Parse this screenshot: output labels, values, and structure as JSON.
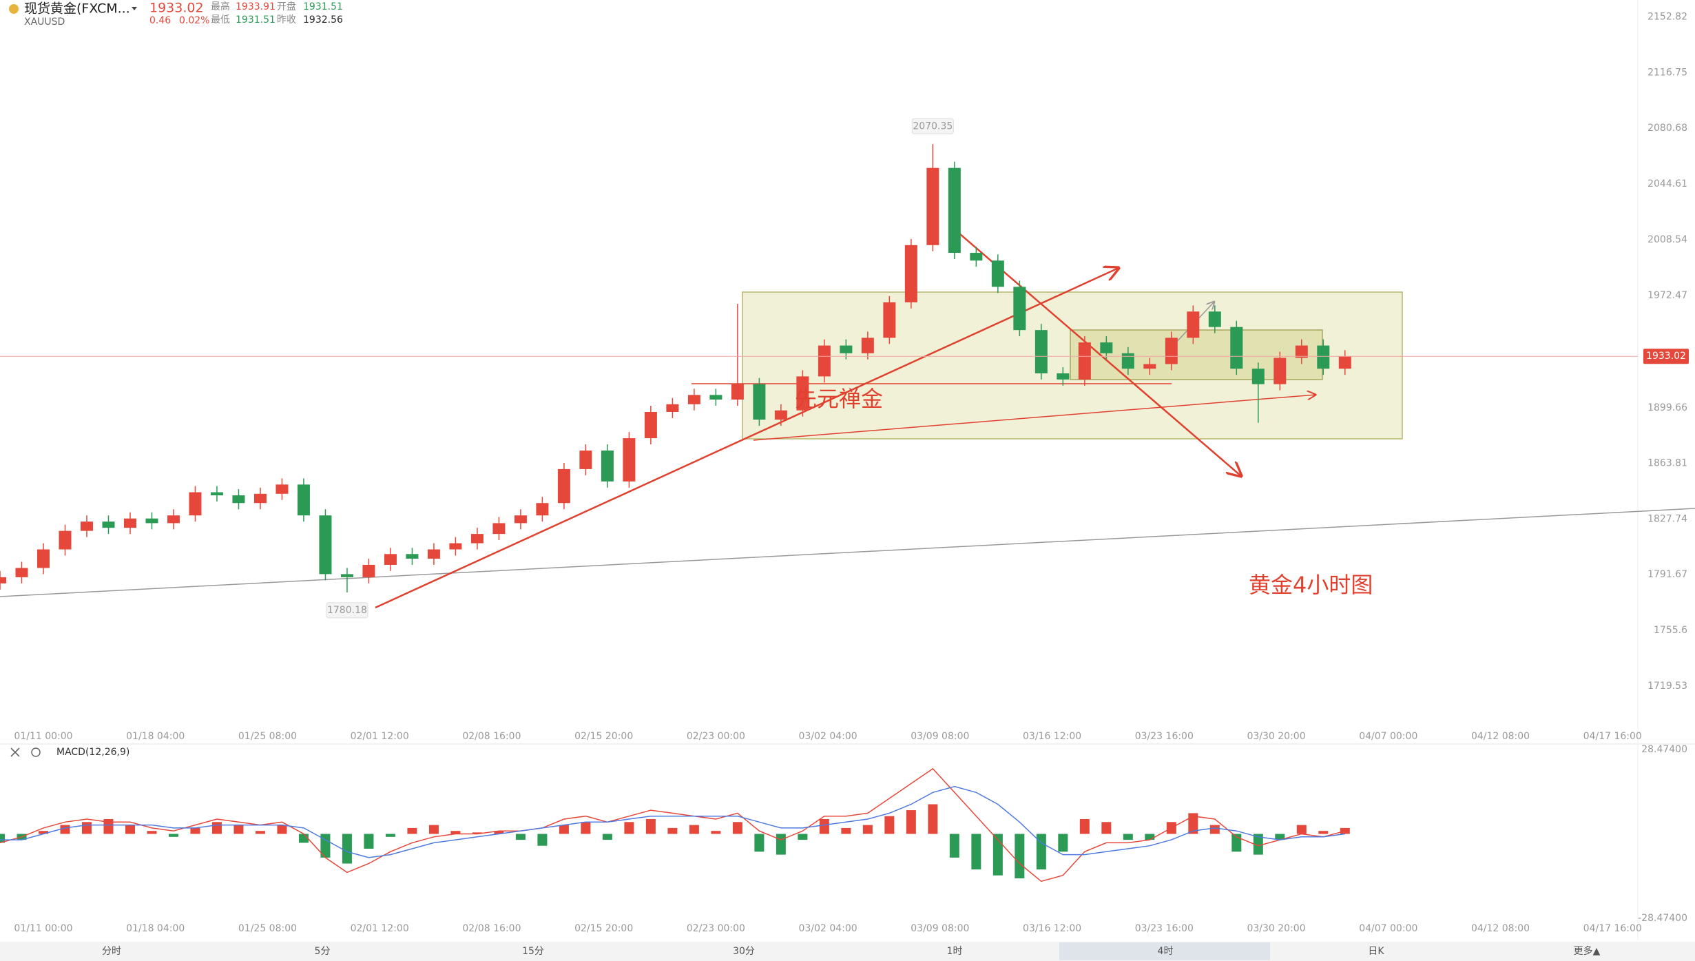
{
  "header": {
    "name": "现货黄金(FXCM...",
    "symbol": "XAUUSD",
    "change": 0.46,
    "change_pct": "0.02%",
    "stats": [
      {
        "label": "最高",
        "value": 1933.91
      },
      {
        "label": "开盘",
        "value": 1931.51
      },
      {
        "label": "最低",
        "value": 1931.51
      },
      {
        "label": "昨收",
        "value": 1932.56
      }
    ]
  },
  "chart_data": {
    "type": "candlestick",
    "current_price": 1933.02,
    "up_color": "#e5473a",
    "down_color": "#2a9a55",
    "annotations": [
      "先元禅金",
      "黄金4小时图"
    ],
    "x": [
      0,
      6,
      12,
      18,
      24,
      30,
      36,
      42,
      48,
      54,
      60,
      66,
      72,
      78,
      84,
      90,
      96,
      102,
      108,
      114,
      120,
      126,
      132,
      138,
      144,
      150,
      156,
      162,
      168,
      174,
      180,
      186,
      192,
      198,
      204,
      210,
      216,
      222,
      228,
      234,
      240,
      246,
      252,
      258,
      264,
      270,
      276,
      282,
      288,
      294,
      300,
      306,
      312,
      318,
      324,
      330,
      336,
      342,
      348,
      354,
      360,
      366,
      372
    ],
    "open": [
      1786,
      1790,
      1796,
      1808,
      1820,
      1826,
      1822,
      1828,
      1825,
      1830,
      1845,
      1843,
      1838,
      1844,
      1850,
      1830,
      1792,
      1790,
      1798,
      1805,
      1802,
      1808,
      1812,
      1818,
      1825,
      1830,
      1838,
      1860,
      1872,
      1852,
      1880,
      1897,
      1902,
      1908,
      1905,
      1915,
      1892,
      1898,
      1920,
      1940,
      1935,
      1945,
      1968,
      2005,
      2055,
      2000,
      1995,
      1978,
      1950,
      1922,
      1918,
      1942,
      1935,
      1925,
      1928,
      1945,
      1962,
      1952,
      1925,
      1915,
      1932,
      1940,
      1925
    ],
    "high": [
      1794,
      1800,
      1812,
      1824,
      1830,
      1830,
      1832,
      1832,
      1834,
      1849,
      1849,
      1847,
      1848,
      1854,
      1854,
      1834,
      1796,
      1802,
      1809,
      1809,
      1812,
      1816,
      1822,
      1829,
      1834,
      1842,
      1864,
      1876,
      1876,
      1884,
      1901,
      1906,
      1912,
      1912,
      1967,
      1919,
      1902,
      1924,
      1944,
      1944,
      1949,
      1972,
      2009,
      2070.35,
      2059,
      2004,
      1999,
      1982,
      1954,
      1926,
      1946,
      1946,
      1939,
      1932,
      1949,
      1966,
      1966,
      1956,
      1929,
      1936,
      1944,
      1944,
      1937
    ],
    "low": [
      1782,
      1786,
      1792,
      1804,
      1816,
      1818,
      1818,
      1821,
      1821,
      1826,
      1839,
      1834,
      1834,
      1840,
      1826,
      1788,
      1780.18,
      1786,
      1794,
      1798,
      1798,
      1804,
      1808,
      1814,
      1821,
      1826,
      1834,
      1856,
      1848,
      1848,
      1876,
      1893,
      1898,
      1901,
      1901,
      1888,
      1888,
      1894,
      1916,
      1931,
      1931,
      1941,
      1964,
      2001,
      1996,
      1991,
      1974,
      1946,
      1918,
      1914,
      1914,
      1931,
      1921,
      1921,
      1924,
      1941,
      1948,
      1921,
      1890,
      1911,
      1928,
      1921,
      1921
    ],
    "close": [
      1790,
      1796,
      1808,
      1820,
      1826,
      1822,
      1828,
      1825,
      1830,
      1845,
      1843,
      1838,
      1844,
      1850,
      1830,
      1792,
      1790,
      1798,
      1805,
      1802,
      1808,
      1812,
      1818,
      1825,
      1830,
      1838,
      1860,
      1872,
      1852,
      1880,
      1897,
      1902,
      1908,
      1905,
      1915,
      1892,
      1898,
      1920,
      1940,
      1935,
      1945,
      1968,
      2005,
      2055,
      2000,
      1995,
      1978,
      1950,
      1922,
      1918,
      1942,
      1935,
      1925,
      1928,
      1945,
      1962,
      1952,
      1925,
      1915,
      1932,
      1940,
      1925,
      1933.02
    ],
    "xlim": [
      0,
      453
    ],
    "xticks": [
      {
        "value": 12,
        "label": "01/11 00:00"
      },
      {
        "value": 43,
        "label": "01/18 04:00"
      },
      {
        "value": 74,
        "label": "01/25 08:00"
      },
      {
        "value": 105,
        "label": "02/01 12:00"
      },
      {
        "value": 136,
        "label": "02/08 16:00"
      },
      {
        "value": 167,
        "label": "02/15 20:00"
      },
      {
        "value": 198,
        "label": "02/23 00:00"
      },
      {
        "value": 229,
        "label": "03/02 04:00"
      },
      {
        "value": 260,
        "label": "03/09 08:00"
      },
      {
        "value": 291,
        "label": "03/16 12:00"
      },
      {
        "value": 322,
        "label": "03/23 16:00"
      },
      {
        "value": 353,
        "label": "03/30 20:00"
      },
      {
        "value": 384,
        "label": "04/07 00:00"
      },
      {
        "value": 415,
        "label": "04/12 08:00"
      },
      {
        "value": 446,
        "label": "04/17 16:00"
      }
    ],
    "ylim": [
      1694.5,
      2163.7
    ],
    "yticks": [
      2152.82,
      2116.75,
      2080.68,
      2044.61,
      2008.54,
      1972.47,
      1899.66,
      1863.81,
      1827.74,
      1791.67,
      1755.6,
      1719.53
    ],
    "macd": {
      "title": "MACD(12,26,9)",
      "dif_color": "#e5473a",
      "dea_color": "#4f7ae0",
      "ylim": [
        -28.474,
        28.474
      ],
      "yticks": [
        {
          "value": 28.474,
          "label": "28.47400"
        },
        {
          "value": -28.474,
          "label": "-28.47400"
        }
      ],
      "histogram": [
        -3,
        -2,
        1,
        3,
        4,
        5,
        3,
        1,
        -1,
        2,
        4,
        3,
        1,
        3,
        -3,
        -8,
        -10,
        -5,
        -1,
        2,
        3,
        1,
        0.5,
        1,
        -2,
        -4,
        3,
        4,
        -2,
        4,
        5,
        2,
        3,
        1,
        4,
        -6,
        -7,
        -2,
        5,
        2,
        3,
        6,
        8,
        10,
        -8,
        -12,
        -14,
        -15,
        -12,
        -6,
        5,
        4,
        -2,
        -2,
        4,
        7,
        3,
        -6,
        -7,
        -2,
        3,
        1,
        2
      ],
      "dif": [
        -3,
        -1,
        2,
        4,
        5,
        4,
        4,
        2,
        1,
        3,
        5,
        4,
        3,
        4,
        0,
        -8,
        -13,
        -10,
        -6,
        -3,
        -1,
        0,
        0,
        1,
        1,
        2,
        5,
        6,
        4,
        6,
        8,
        7,
        6,
        5,
        7,
        1,
        -2,
        1,
        6,
        6,
        7,
        12,
        17,
        22,
        14,
        6,
        -2,
        -10,
        -16,
        -14,
        -6,
        -3,
        -3,
        -2,
        2,
        6,
        5,
        -1,
        -4,
        -2,
        0,
        -1,
        1
      ],
      "dea": [
        -2,
        -2,
        0,
        2,
        3,
        3,
        3,
        3,
        2,
        2,
        3,
        3,
        3,
        3,
        2,
        -2,
        -6,
        -8,
        -7,
        -5,
        -3,
        -2,
        -1,
        0,
        1,
        2,
        3,
        4,
        4,
        5,
        6,
        6,
        6,
        6,
        6,
        4,
        2,
        2,
        3,
        4,
        5,
        7,
        10,
        14,
        16,
        14,
        10,
        4,
        -3,
        -7,
        -7,
        -6,
        -5,
        -4,
        -2,
        1,
        2,
        1,
        -1,
        -2,
        -1,
        -1,
        0
      ]
    }
  },
  "toolbar": {
    "items": [
      "分时",
      "5分",
      "15分",
      "30分",
      "1时",
      "4时",
      "日K",
      "更多▲"
    ],
    "active": 5
  }
}
